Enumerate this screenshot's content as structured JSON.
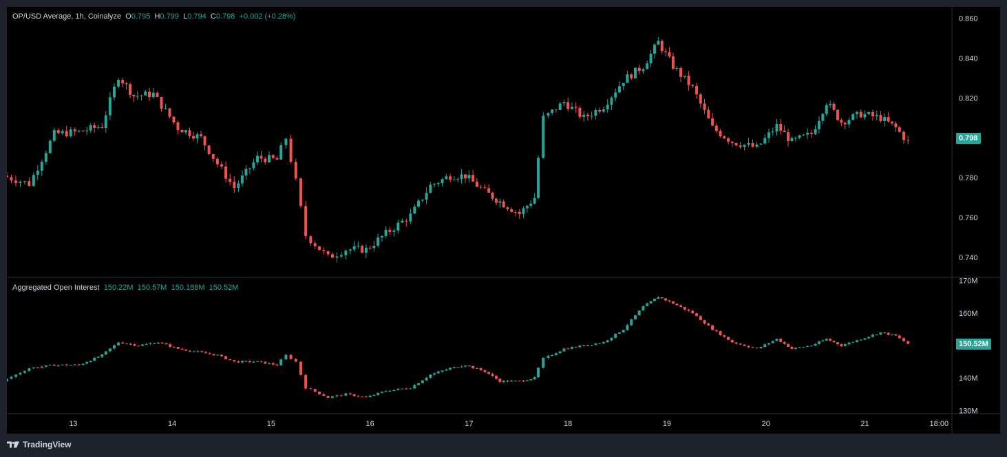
{
  "price_legend": {
    "title": "OP/USD Average, 1h, Coinalyze",
    "o_label": "O",
    "o_value": "0.795",
    "h_label": "H",
    "h_value": "0.799",
    "l_label": "L",
    "l_value": "0.794",
    "c_label": "C",
    "c_value": "0.798",
    "change": "+0.002 (+0.28%)"
  },
  "oi_legend": {
    "title": "Aggregated Open Interest",
    "v1": "150.22M",
    "v2": "150.57M",
    "v3": "150.188M",
    "v4": "150.52M"
  },
  "price_tag": "0.798",
  "oi_tag": "150.52M",
  "brand": "TradingView",
  "colors": {
    "up": "#26a69a",
    "down": "#ef5350",
    "background": "#000000",
    "frame": "#1e222d",
    "text": "#d1d4dc"
  },
  "chart_data": [
    {
      "type": "candlestick",
      "title": "OP/USD Average, 1h, Coinalyze",
      "ylim": [
        0.73,
        0.864
      ],
      "y_ticks": [
        "0.860",
        "0.840",
        "0.820",
        "0.800",
        "0.780",
        "0.760",
        "0.740"
      ],
      "x_ticks": [
        "13",
        "14",
        "15",
        "16",
        "17",
        "18",
        "19",
        "20",
        "21",
        "18:00"
      ],
      "x_range": [
        12.33,
        21.88
      ],
      "series": [
        {
          "points": [
            [
              12.33,
              0.781
            ],
            [
              12.6,
              0.777
            ],
            [
              12.85,
              0.802
            ],
            [
              13.1,
              0.803
            ],
            [
              13.33,
              0.806
            ],
            [
              13.5,
              0.831
            ],
            [
              13.65,
              0.821
            ],
            [
              13.85,
              0.822
            ],
            [
              14.1,
              0.805
            ],
            [
              14.33,
              0.8
            ],
            [
              14.5,
              0.787
            ],
            [
              14.67,
              0.775
            ],
            [
              14.9,
              0.79
            ],
            [
              15.1,
              0.789
            ],
            [
              15.2,
              0.8
            ],
            [
              15.3,
              0.778
            ],
            [
              15.4,
              0.751
            ],
            [
              15.62,
              0.74
            ],
            [
              15.8,
              0.744
            ],
            [
              16.0,
              0.744
            ],
            [
              16.2,
              0.752
            ],
            [
              16.45,
              0.761
            ],
            [
              16.65,
              0.776
            ],
            [
              16.85,
              0.781
            ],
            [
              17.0,
              0.781
            ],
            [
              17.2,
              0.773
            ],
            [
              17.35,
              0.768
            ],
            [
              17.55,
              0.762
            ],
            [
              17.7,
              0.77
            ],
            [
              17.8,
              0.81
            ],
            [
              18.0,
              0.818
            ],
            [
              18.2,
              0.81
            ],
            [
              18.4,
              0.816
            ],
            [
              18.6,
              0.829
            ],
            [
              18.8,
              0.836
            ],
            [
              18.95,
              0.848
            ],
            [
              19.1,
              0.836
            ],
            [
              19.3,
              0.825
            ],
            [
              19.5,
              0.805
            ],
            [
              19.7,
              0.798
            ],
            [
              19.95,
              0.795
            ],
            [
              20.15,
              0.806
            ],
            [
              20.3,
              0.798
            ],
            [
              20.5,
              0.802
            ],
            [
              20.65,
              0.818
            ],
            [
              20.8,
              0.808
            ],
            [
              21.0,
              0.812
            ],
            [
              21.2,
              0.81
            ],
            [
              21.35,
              0.805
            ],
            [
              21.48,
              0.798
            ]
          ]
        }
      ]
    },
    {
      "type": "candlestick",
      "title": "Aggregated Open Interest",
      "ylim": [
        129,
        171
      ],
      "y_ticks": [
        "170M",
        "160M",
        "140M",
        "130M"
      ],
      "series": [
        {
          "points": [
            [
              12.33,
              139
            ],
            [
              12.6,
              143
            ],
            [
              12.85,
              144
            ],
            [
              13.1,
              144
            ],
            [
              13.33,
              147
            ],
            [
              13.5,
              151
            ],
            [
              13.7,
              150
            ],
            [
              13.9,
              151
            ],
            [
              14.1,
              149
            ],
            [
              14.3,
              148
            ],
            [
              14.5,
              147
            ],
            [
              14.67,
              145
            ],
            [
              14.9,
              145
            ],
            [
              15.1,
              144
            ],
            [
              15.2,
              147
            ],
            [
              15.3,
              145
            ],
            [
              15.4,
              137
            ],
            [
              15.62,
              134
            ],
            [
              15.8,
              135
            ],
            [
              16.0,
              134
            ],
            [
              16.2,
              136
            ],
            [
              16.45,
              137
            ],
            [
              16.65,
              141
            ],
            [
              16.85,
              143
            ],
            [
              17.0,
              144
            ],
            [
              17.2,
              142
            ],
            [
              17.35,
              139
            ],
            [
              17.55,
              139
            ],
            [
              17.7,
              140
            ],
            [
              17.8,
              146
            ],
            [
              18.0,
              149
            ],
            [
              18.2,
              150
            ],
            [
              18.4,
              151
            ],
            [
              18.6,
              155
            ],
            [
              18.8,
              162
            ],
            [
              18.95,
              165
            ],
            [
              19.1,
              163
            ],
            [
              19.3,
              160
            ],
            [
              19.5,
              155
            ],
            [
              19.7,
              151
            ],
            [
              19.95,
              149
            ],
            [
              20.15,
              152
            ],
            [
              20.3,
              149
            ],
            [
              20.5,
              150
            ],
            [
              20.65,
              152
            ],
            [
              20.8,
              150
            ],
            [
              21.0,
              152
            ],
            [
              21.2,
              154
            ],
            [
              21.35,
              153
            ],
            [
              21.48,
              150.5
            ]
          ]
        }
      ]
    }
  ]
}
